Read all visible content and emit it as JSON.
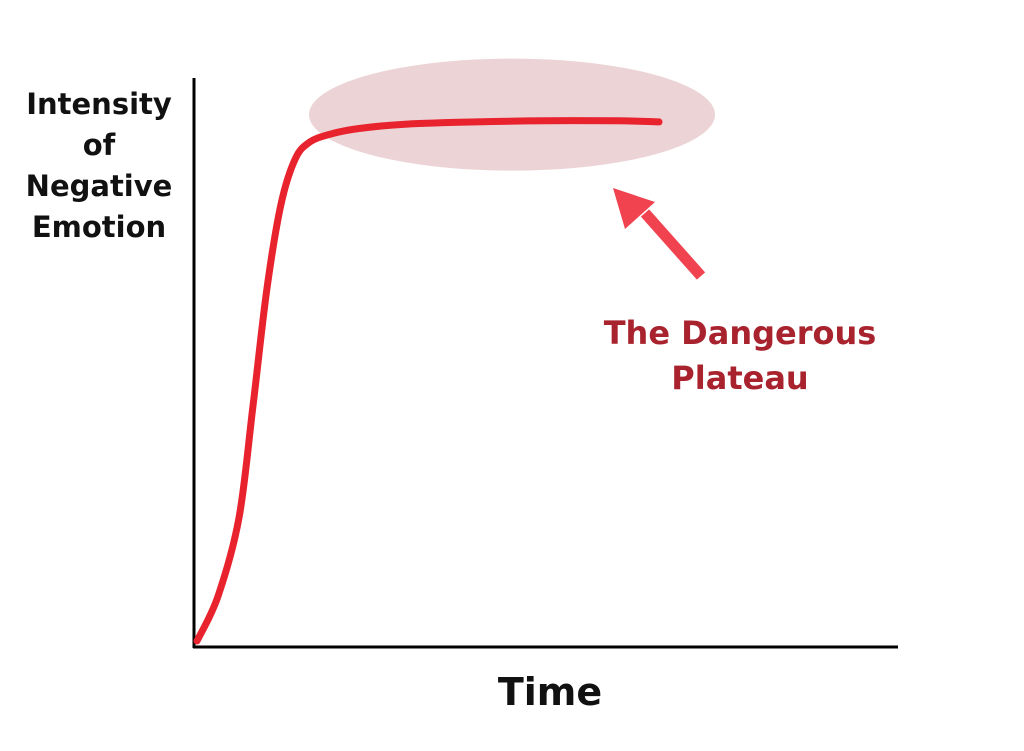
{
  "chart_data": {
    "type": "line",
    "title": "",
    "ylabel": "Intensity\nof\nNegative\nEmotion",
    "xlabel": "Time",
    "grid": false,
    "legend": "none",
    "xlim": [
      0,
      100
    ],
    "ylim": [
      0,
      100
    ],
    "series": [
      {
        "x": [
          0,
          3,
          6,
          8,
          10,
          12,
          14,
          16,
          19,
          23,
          30,
          40,
          50,
          60,
          66
        ],
        "values": [
          0,
          8,
          22,
          42,
          63,
          78,
          86,
          89,
          90.5,
          91.5,
          92.3,
          92.7,
          92.9,
          92.9,
          92.7
        ]
      }
    ],
    "annotation": {
      "text": "The Dangerous\nPlateau",
      "highlight_x_range": [
        16,
        74
      ],
      "highlight_y_range": [
        84,
        104
      ]
    },
    "colors": {
      "line": "#e8232e",
      "highlight": "#ecd3d6",
      "arrow": "#f0434f",
      "annotation_text": "#a8232e",
      "axis": "#000000"
    }
  }
}
